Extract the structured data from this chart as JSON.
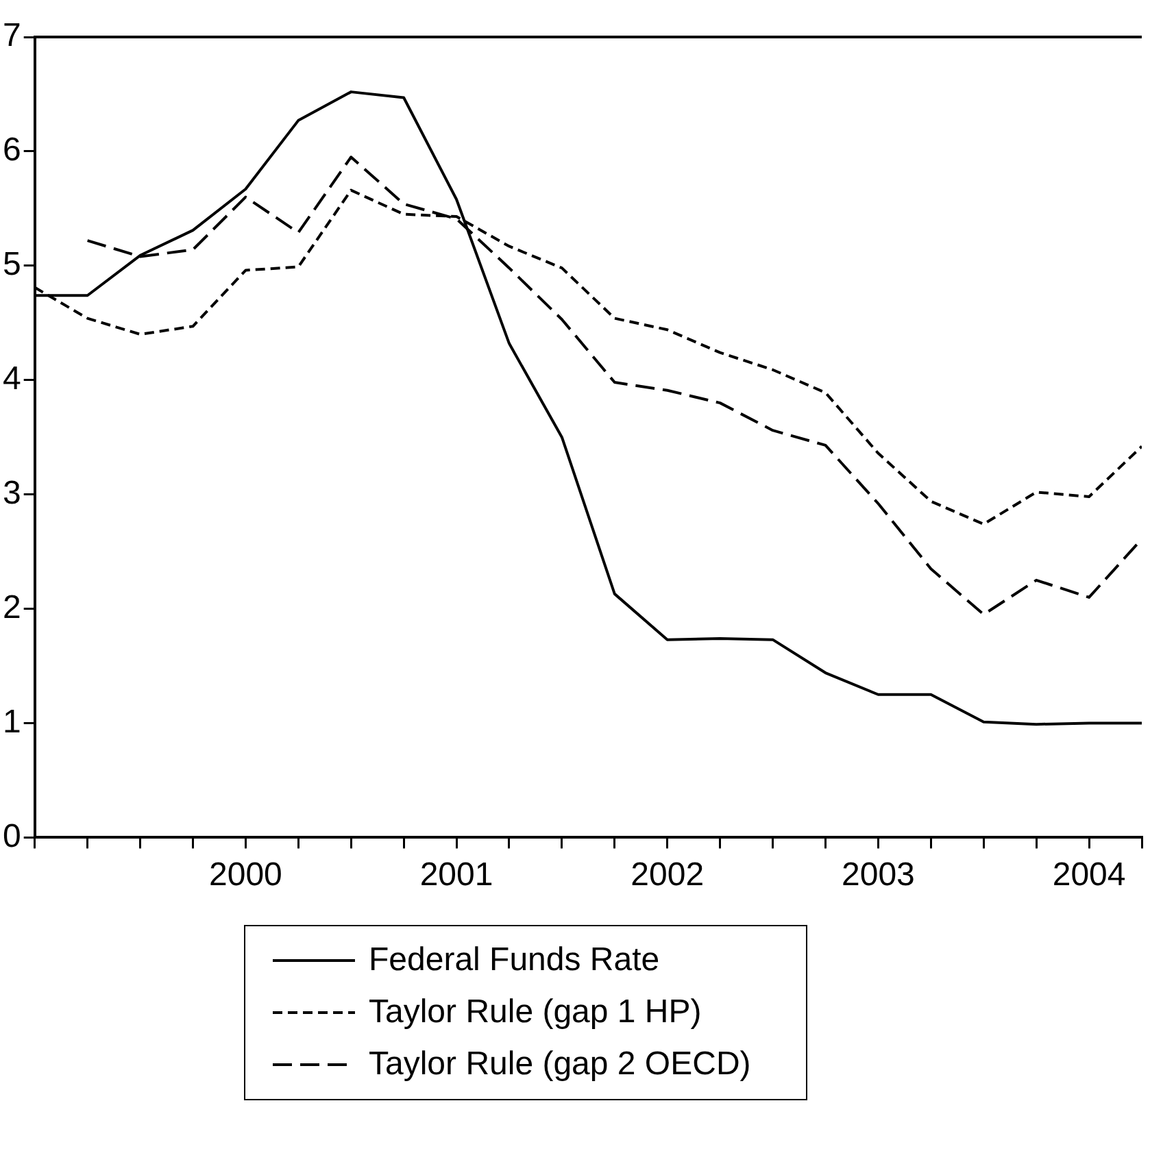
{
  "chart_data": {
    "type": "line",
    "x": [
      1999,
      1999.25,
      1999.5,
      1999.75,
      2000,
      2000.25,
      2000.5,
      2000.75,
      2001,
      2001.25,
      2001.5,
      2001.75,
      2002,
      2002.25,
      2002.5,
      2002.75,
      2003,
      2003.25,
      2003.5,
      2003.75,
      2004,
      2004.25
    ],
    "series": [
      {
        "name": "Federal Funds Rate",
        "color": "#000000",
        "line_style": "solid",
        "values": [
          4.74,
          4.74,
          5.09,
          5.31,
          5.67,
          6.27,
          6.52,
          6.47,
          5.58,
          4.32,
          3.5,
          2.13,
          1.73,
          1.74,
          1.73,
          1.44,
          1.25,
          1.25,
          1.01,
          0.99,
          1.0,
          1.0
        ]
      },
      {
        "name": "Taylor Rule (gap 1 HP)",
        "color": "#000000",
        "line_style": "dashed",
        "values": [
          4.81,
          4.54,
          4.4,
          4.47,
          4.96,
          4.99,
          5.66,
          5.45,
          5.43,
          5.17,
          4.98,
          4.54,
          4.44,
          4.24,
          4.09,
          3.89,
          3.36,
          2.94,
          2.74,
          3.02,
          2.98,
          3.42
        ]
      },
      {
        "name": "Taylor Rule (gap 2 OECD)",
        "color": "#000000",
        "line_style": "dashed",
        "values": [
          null,
          5.22,
          5.08,
          5.14,
          5.6,
          5.29,
          5.95,
          5.54,
          5.41,
          4.98,
          4.53,
          3.98,
          3.91,
          3.8,
          3.56,
          3.43,
          2.92,
          2.35,
          1.95,
          2.25,
          2.1,
          2.61
        ]
      }
    ],
    "xlim": [
      1999,
      2004.25
    ],
    "xticks": [
      {
        "value": 1999,
        "label": null
      },
      {
        "value": 1999.25,
        "label": null
      },
      {
        "value": 1999.5,
        "label": null
      },
      {
        "value": 1999.75,
        "label": null
      },
      {
        "value": 2000,
        "label": "2000"
      },
      {
        "value": 2000.25,
        "label": null
      },
      {
        "value": 2000.5,
        "label": null
      },
      {
        "value": 2000.75,
        "label": null
      },
      {
        "value": 2001,
        "label": "2001"
      },
      {
        "value": 2001.25,
        "label": null
      },
      {
        "value": 2001.5,
        "label": null
      },
      {
        "value": 2001.75,
        "label": null
      },
      {
        "value": 2002,
        "label": "2002"
      },
      {
        "value": 2002.25,
        "label": null
      },
      {
        "value": 2002.5,
        "label": null
      },
      {
        "value": 2002.75,
        "label": null
      },
      {
        "value": 2003,
        "label": "2003"
      },
      {
        "value": 2003.25,
        "label": null
      },
      {
        "value": 2003.5,
        "label": null
      },
      {
        "value": 2003.75,
        "label": null
      },
      {
        "value": 2004,
        "label": "2004"
      },
      {
        "value": 2004.25,
        "label": null
      }
    ],
    "ylim": [
      0,
      7
    ],
    "yticks": [
      0,
      1,
      2,
      3,
      4,
      5,
      6,
      7
    ],
    "grid": false,
    "legend": "bottom",
    "marker": "none"
  }
}
